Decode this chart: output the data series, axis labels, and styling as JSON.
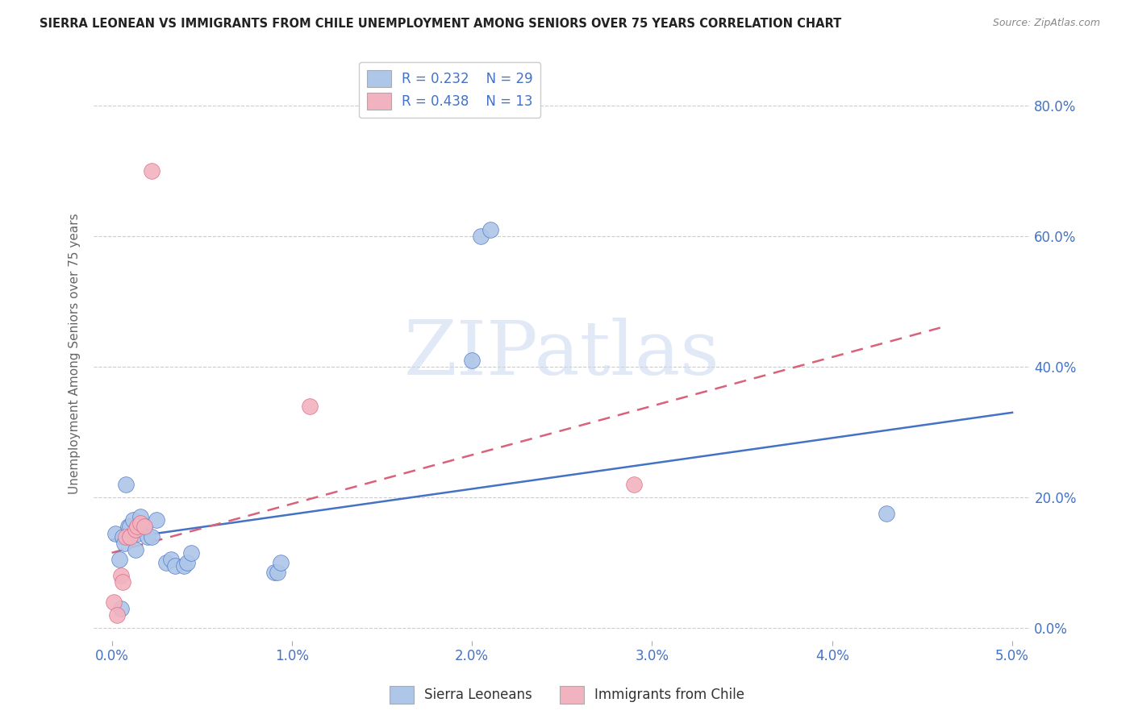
{
  "title": "SIERRA LEONEAN VS IMMIGRANTS FROM CHILE UNEMPLOYMENT AMONG SENIORS OVER 75 YEARS CORRELATION CHART",
  "source": "Source: ZipAtlas.com",
  "ylabel_label": "Unemployment Among Seniors over 75 years",
  "legend_label1": "Sierra Leoneans",
  "legend_label2": "Immigrants from Chile",
  "legend_r1": "R = 0.232",
  "legend_n1": "N = 29",
  "legend_r2": "R = 0.438",
  "legend_n2": "N = 13",
  "watermark": "ZIPatlas",
  "blue_color": "#aec6e8",
  "pink_color": "#f2b3c0",
  "blue_line_color": "#4472c4",
  "pink_line_color": "#d9627a",
  "blue_scatter_x": [
    0.0002,
    0.0004,
    0.0005,
    0.0006,
    0.0007,
    0.0008,
    0.0009,
    0.001,
    0.0012,
    0.0013,
    0.0014,
    0.0016,
    0.0018,
    0.002,
    0.0022,
    0.0025,
    0.003,
    0.0033,
    0.0035,
    0.004,
    0.0042,
    0.0044,
    0.009,
    0.0092,
    0.0094,
    0.02,
    0.0205,
    0.021,
    0.043
  ],
  "blue_scatter_y": [
    0.145,
    0.105,
    0.03,
    0.14,
    0.13,
    0.22,
    0.155,
    0.155,
    0.165,
    0.12,
    0.145,
    0.17,
    0.155,
    0.14,
    0.14,
    0.165,
    0.1,
    0.105,
    0.095,
    0.095,
    0.1,
    0.115,
    0.085,
    0.085,
    0.1,
    0.41,
    0.6,
    0.61,
    0.175
  ],
  "pink_scatter_x": [
    0.0001,
    0.0003,
    0.0005,
    0.0006,
    0.0008,
    0.001,
    0.0013,
    0.0014,
    0.0016,
    0.0018,
    0.0022,
    0.011,
    0.029
  ],
  "pink_scatter_y": [
    0.04,
    0.02,
    0.08,
    0.07,
    0.14,
    0.14,
    0.15,
    0.155,
    0.16,
    0.155,
    0.7,
    0.34,
    0.22
  ],
  "blue_trend_x": [
    0.0,
    0.05
  ],
  "blue_trend_y": [
    0.135,
    0.33
  ],
  "pink_trend_x": [
    0.0,
    0.046
  ],
  "pink_trend_y": [
    0.115,
    0.46
  ],
  "xlim": [
    -0.001,
    0.051
  ],
  "ylim": [
    -0.02,
    0.86
  ],
  "xtick_vals": [
    0.0,
    0.01,
    0.02,
    0.03,
    0.04,
    0.05
  ],
  "ytick_vals": [
    0.0,
    0.2,
    0.4,
    0.6,
    0.8
  ],
  "figsize": [
    14.06,
    8.92
  ],
  "dpi": 100
}
